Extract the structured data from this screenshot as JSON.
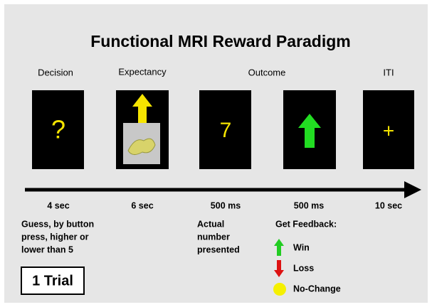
{
  "title": "Functional MRI Reward Paradigm",
  "stages": [
    {
      "label": "Decision"
    },
    {
      "label": "Expectancy"
    },
    {
      "label": "Outcome"
    },
    {
      "label": "ITI"
    }
  ],
  "panels": [
    {
      "symbol": "?"
    },
    {
      "symbol": "7"
    },
    {
      "symbol": "+"
    }
  ],
  "durations": [
    "4 sec",
    "6 sec",
    "500 ms",
    "500 ms",
    "10 sec"
  ],
  "decision_description": [
    "Guess, by button",
    "press, higher or",
    "lower than 5"
  ],
  "outcome_description": [
    "Actual",
    "number",
    "presented"
  ],
  "feedback": {
    "title": "Get Feedback:",
    "items": [
      "Win",
      "Loss",
      "No-Change"
    ]
  },
  "trial": "1 Trial"
}
